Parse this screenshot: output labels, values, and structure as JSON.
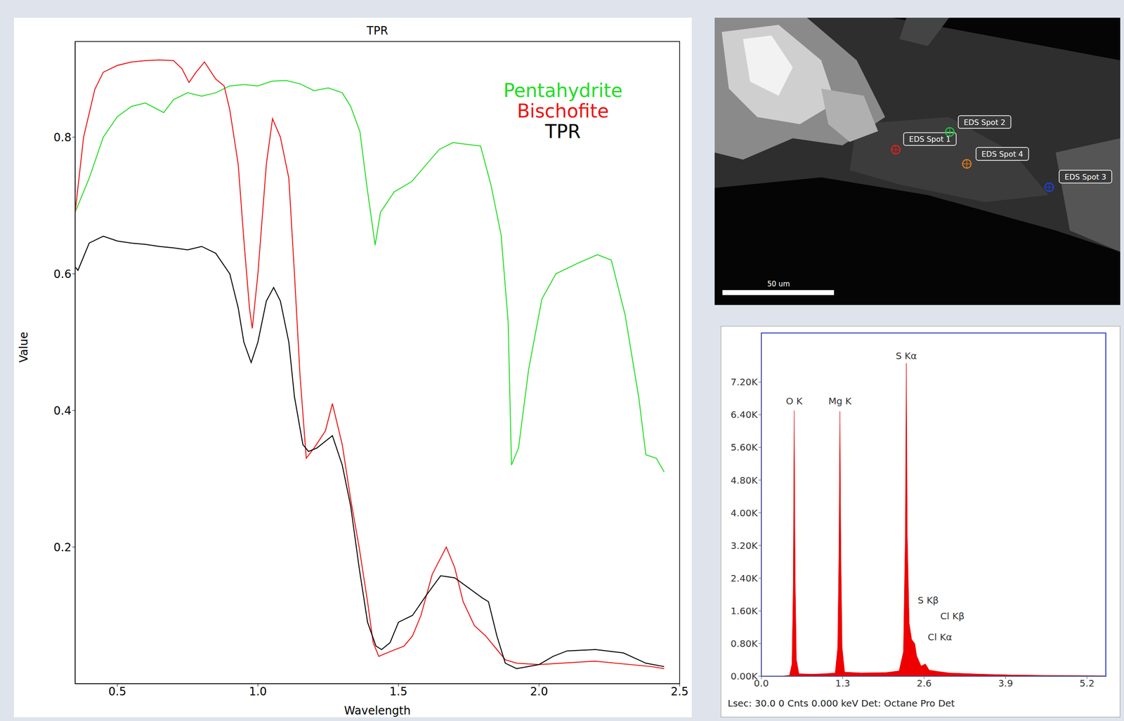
{
  "chart_data": [
    {
      "type": "line",
      "title": "TPR",
      "x_label": "Wavelength",
      "y_label": "Value",
      "xlim": [
        0.35,
        2.5
      ],
      "xticks": [
        0.5,
        {
          "value": 1,
          "label": "1.0"
        },
        1.5,
        {
          "value": 2,
          "label": "2.0"
        },
        2.5
      ],
      "ylim": [
        0,
        0.94
      ],
      "yticks": [
        0.2,
        0.4,
        0.6,
        0.8
      ],
      "grid": false,
      "legend": "upper right",
      "series": [
        {
          "name": "Pentahydrite",
          "color": "#22dd22",
          "x": [
            0.35,
            0.4,
            0.45,
            0.5,
            0.55,
            0.6,
            0.665,
            0.7,
            0.75,
            0.8,
            0.85,
            0.9,
            0.95,
            1.0,
            1.05,
            1.1,
            1.15,
            1.2,
            1.25,
            1.3,
            1.33,
            1.363,
            1.387,
            1.417,
            1.436,
            1.485,
            1.547,
            1.645,
            1.694,
            1.792,
            1.829,
            1.865,
            1.89,
            1.902,
            1.927,
            1.963,
            2.01,
            2.06,
            2.135,
            2.208,
            2.257,
            2.306,
            2.355,
            2.38,
            2.417,
            2.445
          ],
          "values": [
            0.69,
            0.74,
            0.8,
            0.83,
            0.845,
            0.85,
            0.836,
            0.855,
            0.865,
            0.86,
            0.865,
            0.875,
            0.877,
            0.875,
            0.882,
            0.883,
            0.878,
            0.868,
            0.872,
            0.865,
            0.845,
            0.808,
            0.73,
            0.642,
            0.69,
            0.72,
            0.735,
            0.782,
            0.792,
            0.787,
            0.73,
            0.657,
            0.53,
            0.32,
            0.345,
            0.46,
            0.563,
            0.6,
            0.615,
            0.628,
            0.62,
            0.54,
            0.418,
            0.335,
            0.33,
            0.31
          ]
        },
        {
          "name": "Bischofite",
          "color": "#ee1111",
          "x": [
            0.35,
            0.38,
            0.42,
            0.45,
            0.5,
            0.55,
            0.6,
            0.65,
            0.7,
            0.73,
            0.755,
            0.78,
            0.81,
            0.85,
            0.88,
            0.9,
            0.93,
            0.95,
            0.97,
            0.98,
            1.0,
            1.03,
            1.052,
            1.08,
            1.11,
            1.13,
            1.15,
            1.172,
            1.2,
            1.24,
            1.265,
            1.3,
            1.33,
            1.36,
            1.39,
            1.41,
            1.43,
            1.47,
            1.52,
            1.55,
            1.58,
            1.62,
            1.67,
            1.7,
            1.73,
            1.77,
            1.81,
            1.85,
            1.88,
            1.92,
            2.0,
            2.2,
            2.4,
            2.445
          ],
          "values": [
            0.69,
            0.8,
            0.87,
            0.895,
            0.905,
            0.91,
            0.912,
            0.913,
            0.912,
            0.9,
            0.88,
            0.895,
            0.91,
            0.885,
            0.875,
            0.84,
            0.76,
            0.65,
            0.55,
            0.52,
            0.6,
            0.76,
            0.827,
            0.8,
            0.74,
            0.6,
            0.45,
            0.33,
            0.345,
            0.37,
            0.41,
            0.35,
            0.27,
            0.2,
            0.12,
            0.06,
            0.04,
            0.047,
            0.055,
            0.07,
            0.1,
            0.16,
            0.2,
            0.17,
            0.12,
            0.085,
            0.07,
            0.05,
            0.035,
            0.03,
            0.028,
            0.033,
            0.025,
            0.022
          ]
        },
        {
          "name": "TPR",
          "color": "#000000",
          "x": [
            0.35,
            0.36,
            0.4,
            0.45,
            0.5,
            0.55,
            0.6,
            0.65,
            0.7,
            0.75,
            0.8,
            0.85,
            0.9,
            0.93,
            0.95,
            0.976,
            1.0,
            1.03,
            1.056,
            1.08,
            1.11,
            1.13,
            1.16,
            1.18,
            1.21,
            1.265,
            1.3,
            1.33,
            1.36,
            1.39,
            1.42,
            1.44,
            1.47,
            1.5,
            1.55,
            1.6,
            1.65,
            1.7,
            1.75,
            1.8,
            1.82,
            1.85,
            1.88,
            1.92,
            2.0,
            2.05,
            2.1,
            2.2,
            2.3,
            2.38,
            2.445
          ],
          "values": [
            0.61,
            0.605,
            0.645,
            0.655,
            0.648,
            0.645,
            0.643,
            0.64,
            0.638,
            0.635,
            0.64,
            0.63,
            0.6,
            0.55,
            0.5,
            0.47,
            0.5,
            0.56,
            0.58,
            0.56,
            0.5,
            0.42,
            0.35,
            0.34,
            0.345,
            0.363,
            0.32,
            0.26,
            0.17,
            0.09,
            0.055,
            0.05,
            0.06,
            0.09,
            0.1,
            0.13,
            0.158,
            0.155,
            0.14,
            0.125,
            0.12,
            0.07,
            0.03,
            0.022,
            0.028,
            0.04,
            0.048,
            0.05,
            0.045,
            0.03,
            0.025
          ]
        }
      ]
    },
    {
      "type": "area",
      "color": "#ee0000",
      "caption": "Lsec: 30.0 0 Cnts 0.000 keV Det: Octane Pro Det",
      "xlim": [
        0,
        5.5
      ],
      "xticks": [
        {
          "value": 0,
          "label": "0.0"
        },
        1.3,
        2.6,
        3.9,
        5.2
      ],
      "ylim": [
        0,
        8400
      ],
      "yticks": [
        {
          "value": 0,
          "label": "0.00K"
        },
        {
          "value": 800,
          "label": "0.80K"
        },
        {
          "value": 1600,
          "label": "1.60K"
        },
        {
          "value": 2400,
          "label": "2.40K"
        },
        {
          "value": 3200,
          "label": "3.20K"
        },
        {
          "value": 4000,
          "label": "4.00K"
        },
        {
          "value": 4800,
          "label": "4.80K"
        },
        {
          "value": 5600,
          "label": "5.60K"
        },
        {
          "value": 6400,
          "label": "6.40K"
        },
        {
          "value": 7200,
          "label": "7.20K"
        }
      ],
      "x": [
        0,
        0.3,
        0.45,
        0.49,
        0.51,
        0.525,
        0.54,
        0.56,
        0.6,
        0.8,
        1.0,
        1.18,
        1.22,
        1.24,
        1.255,
        1.27,
        1.29,
        1.33,
        1.6,
        2.0,
        2.2,
        2.27,
        2.3,
        2.315,
        2.33,
        2.36,
        2.4,
        2.45,
        2.48,
        2.55,
        2.62,
        2.68,
        2.8,
        3.0,
        3.5,
        4.0,
        4.5,
        5.0,
        5.5
      ],
      "values": [
        0,
        0,
        20,
        300,
        2200,
        6500,
        2400,
        400,
        60,
        50,
        60,
        80,
        700,
        3000,
        6480,
        3000,
        700,
        100,
        80,
        90,
        130,
        600,
        3500,
        7660,
        3500,
        1300,
        900,
        800,
        500,
        250,
        300,
        150,
        120,
        80,
        50,
        30,
        20,
        15,
        10
      ],
      "annotations": [
        {
          "text": "O K",
          "x": 0.525,
          "y": 6600
        },
        {
          "text": "Mg K",
          "x": 1.255,
          "y": 6600
        },
        {
          "text": "S Kα",
          "x": 2.315,
          "y": 7700
        },
        {
          "text": "S Kβ",
          "x": 2.46,
          "y": 1860
        },
        {
          "text": "Cl Kβ",
          "x": 2.82,
          "y": 1470
        },
        {
          "text": "Cl Kα",
          "x": 2.62,
          "y": 960
        }
      ]
    }
  ],
  "image": {
    "scale_bar": "50 um",
    "spots": [
      {
        "label": "EDS Spot 1",
        "color": "#e02020"
      },
      {
        "label": "EDS Spot 2",
        "color": "#20c040"
      },
      {
        "label": "EDS Spot 3",
        "color": "#2040e0"
      },
      {
        "label": "EDS Spot 4",
        "color": "#e07a20"
      }
    ]
  }
}
